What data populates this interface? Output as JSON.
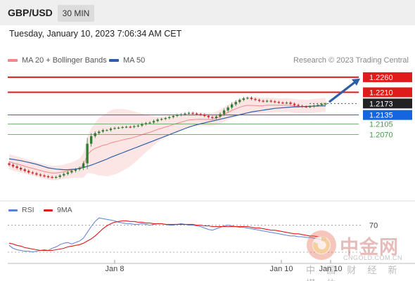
{
  "header": {
    "pair": "GBP/USD",
    "timeframe": "30 MIN",
    "datetime": "Tuesday, January 10, 2023 7:06:34 AM CET"
  },
  "legend": {
    "bb_label": "MA 20 + Bollinger Bands",
    "ma50_label": "MA 50",
    "credit": "Research © 2023 Trading Central"
  },
  "rsi_legend": {
    "rsi_label": "RSI",
    "ma_label": "9MA"
  },
  "watermark": {
    "name": "中金网",
    "url": "CNGOLD.COM.CN",
    "sub": "中 国 财 经 新 媒 体"
  },
  "colors": {
    "resistance": "#e01b1b",
    "support": "#4a9a4a",
    "ma50": "#2d5fa8",
    "bollinger": "#f08a8a",
    "pivot": "#1565e0",
    "current": "#222222",
    "bull_candle": "#2e7d32",
    "bear_candle": "#c62828",
    "rsi": "#5b7fd6",
    "rsi_ma": "#e01b1b"
  },
  "chart_data": {
    "type": "candlestick",
    "instrument": "GBP/USD",
    "ylim": [
      1.186,
      1.229
    ],
    "x_tick_labels": [
      "Jan 8",
      "Jan 10",
      "Jan 10"
    ],
    "levels": [
      {
        "value": 1.226,
        "label": "1.2260",
        "kind": "resistance",
        "style": "solid-bold"
      },
      {
        "value": 1.221,
        "label": "1.2210",
        "kind": "resistance",
        "style": "solid-bold"
      },
      {
        "value": 1.2173,
        "label": "1.2173",
        "kind": "current",
        "style": "dotted"
      },
      {
        "value": 1.2135,
        "label": "1.2135",
        "kind": "pivot",
        "style": "solid"
      },
      {
        "value": 1.2105,
        "label": "1.2105",
        "kind": "support",
        "style": "solid"
      },
      {
        "value": 1.207,
        "label": "1.2070",
        "kind": "support",
        "style": "solid"
      }
    ],
    "closes": [
      1.197,
      1.1965,
      1.196,
      1.1955,
      1.195,
      1.1945,
      1.1942,
      1.1938,
      1.1935,
      1.1932,
      1.193,
      1.1928,
      1.193,
      1.1935,
      1.194,
      1.1945,
      1.195,
      1.1955,
      1.196,
      1.1975,
      1.204,
      1.2065,
      1.2075,
      1.208,
      1.2085,
      1.2085,
      1.209,
      1.2092,
      1.2093,
      1.2095,
      1.2096,
      1.2095,
      1.2098,
      1.21,
      1.2105,
      1.2108,
      1.211,
      1.2115,
      1.212,
      1.2122,
      1.2125,
      1.2128,
      1.2132,
      1.2135,
      1.2137,
      1.214,
      1.2142,
      1.214,
      1.2138,
      1.2136,
      1.2132,
      1.2128,
      1.2125,
      1.213,
      1.2138,
      1.215,
      1.216,
      1.217,
      1.2178,
      1.2185,
      1.219,
      1.2192,
      1.2188,
      1.2185,
      1.2182,
      1.218,
      1.2182,
      1.218,
      1.2178,
      1.2176,
      1.2175,
      1.2176,
      1.2172,
      1.2168,
      1.2165,
      1.2163,
      1.2162,
      1.2163,
      1.2166,
      1.2168,
      1.2171,
      1.2173
    ],
    "ma50": [
      1.199,
      1.1988,
      1.1986,
      1.1984,
      1.1981,
      1.1978,
      1.1975,
      1.1972,
      1.1968,
      1.1964,
      1.196,
      1.1958,
      1.1956,
      1.1955,
      1.1954,
      1.1954,
      1.1955,
      1.1956,
      1.1958,
      1.1961,
      1.1965,
      1.1969,
      1.1974,
      1.1979,
      1.1984,
      1.1989,
      1.1995,
      1.2,
      1.2005,
      1.201,
      1.2015,
      1.202,
      1.2025,
      1.203,
      1.2035,
      1.204,
      1.2045,
      1.205,
      1.2055,
      1.206,
      1.2065,
      1.207,
      1.2075,
      1.208,
      1.2085,
      1.209,
      1.2095,
      1.2099,
      1.2103,
      1.2106,
      1.2109,
      1.2112,
      1.2115,
      1.2118,
      1.2121,
      1.2124,
      1.2127,
      1.213,
      1.2133,
      1.2136,
      1.2139,
      1.2142,
      1.2145,
      1.2147,
      1.2149,
      1.2151,
      1.2153,
      1.2155,
      1.2157,
      1.2158,
      1.2159,
      1.216,
      1.2161,
      1.2162,
      1.2162,
      1.2163,
      1.2163,
      1.2164,
      1.2164,
      1.2165,
      1.2165,
      1.2165
    ],
    "bb_width": [
      0.0025,
      0.0025,
      0.0025,
      0.0025,
      0.0024,
      0.0024,
      0.0024,
      0.0024,
      0.0024,
      0.0024,
      0.0024,
      0.0024,
      0.0024,
      0.0024,
      0.0024,
      0.0025,
      0.0026,
      0.0028,
      0.0032,
      0.004,
      0.006,
      0.0075,
      0.0085,
      0.0095,
      0.01,
      0.0105,
      0.0108,
      0.0108,
      0.0106,
      0.0102,
      0.0098,
      0.0092,
      0.0085,
      0.0078,
      0.007,
      0.0062,
      0.0055,
      0.0048,
      0.0042,
      0.0038,
      0.0034,
      0.003,
      0.0028,
      0.0026,
      0.0024,
      0.0023,
      0.0022,
      0.0022,
      0.0022,
      0.0022,
      0.0022,
      0.0022,
      0.0022,
      0.0022,
      0.0023,
      0.0024,
      0.0025,
      0.0026,
      0.0027,
      0.0028,
      0.0028,
      0.0028,
      0.0028,
      0.0028,
      0.0027,
      0.0026,
      0.0025,
      0.0024,
      0.0024,
      0.0023,
      0.0023,
      0.0023,
      0.0023,
      0.0023,
      0.0023,
      0.0023,
      0.0023,
      0.0023,
      0.0023,
      0.0023,
      0.0023,
      0.0023
    ],
    "forecast_target": 1.226,
    "rsi": {
      "ylim": [
        20,
        85
      ],
      "level_label": "70",
      "level": 70,
      "values": [
        42,
        38,
        36,
        35,
        34,
        34,
        33,
        34,
        35,
        36,
        35,
        38,
        40,
        43,
        45,
        46,
        44,
        46,
        48,
        52,
        60,
        68,
        75,
        80,
        79,
        78,
        77,
        76,
        74,
        73,
        72,
        72,
        71,
        71,
        72,
        71,
        70,
        71,
        72,
        72,
        71,
        70,
        70,
        71,
        72,
        71,
        70,
        70,
        69,
        68,
        66,
        64,
        63,
        65,
        67,
        69,
        70,
        69,
        68,
        67,
        67,
        66,
        65,
        64,
        63,
        62,
        61,
        60,
        59,
        58,
        57,
        56,
        55,
        55,
        54,
        54,
        53,
        53,
        52,
        51,
        50,
        50
      ],
      "ma_values": [
        45,
        44,
        42,
        41,
        39,
        38,
        37,
        36,
        35,
        35,
        35,
        35,
        36,
        37,
        38,
        40,
        41,
        42,
        43,
        45,
        48,
        51,
        55,
        60,
        65,
        69,
        72,
        74,
        75,
        76,
        76,
        75,
        75,
        74,
        74,
        73,
        73,
        72,
        72,
        72,
        71,
        71,
        71,
        71,
        71,
        71,
        71,
        71,
        70,
        70,
        69,
        69,
        68,
        68,
        68,
        68,
        68,
        68,
        68,
        68,
        68,
        68,
        67,
        66,
        66,
        65,
        64,
        63,
        63,
        62,
        61,
        60,
        59,
        58,
        58,
        57,
        56,
        55,
        55,
        54,
        54,
        53
      ]
    }
  }
}
